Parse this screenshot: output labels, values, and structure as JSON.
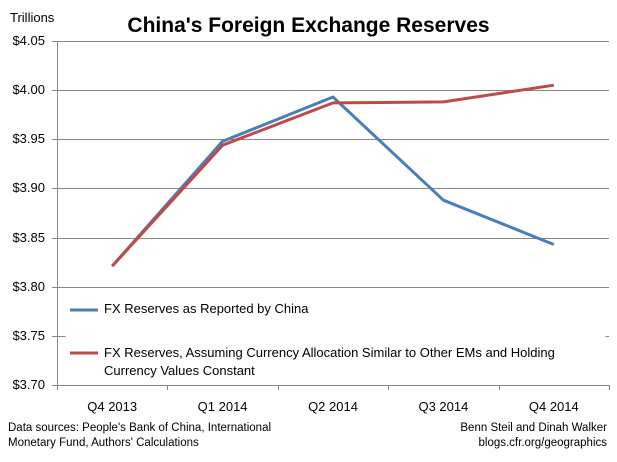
{
  "chart_data": {
    "type": "line",
    "title": "China's Foreign Exchange Reserves",
    "ylabel": "Trillions",
    "categories": [
      "Q4 2013",
      "Q1 2014",
      "Q2 2014",
      "Q3 2014",
      "Q4 2014"
    ],
    "ylim": [
      3.7,
      4.05
    ],
    "yticks": [
      4.05,
      4.0,
      3.95,
      3.9,
      3.85,
      3.8,
      3.75,
      3.7
    ],
    "ytick_labels": [
      "$4.05",
      "$4.00",
      "$3.95",
      "$3.90",
      "$3.85",
      "$3.80",
      "$3.75",
      "$3.70"
    ],
    "grid": true,
    "series": [
      {
        "name": "FX Reserves as Reported by China",
        "color": "#4a7ebb",
        "values": [
          3.821,
          3.948,
          3.993,
          3.888,
          3.843
        ]
      },
      {
        "name": "FX Reserves, Assuming Currency Allocation Similar to Other EMs and Holding Currency Values Constant",
        "color": "#be4b48",
        "values": [
          3.821,
          3.944,
          3.987,
          3.988,
          4.005
        ]
      }
    ],
    "legend_position": "bottom-left inside"
  },
  "footer": {
    "source": "Data sources: People's Bank of China, International Monetary Fund, Authors' Calculations",
    "credit_line1": "Benn Steil and Dinah Walker",
    "credit_line2": "blogs.cfr.org/geographics"
  }
}
